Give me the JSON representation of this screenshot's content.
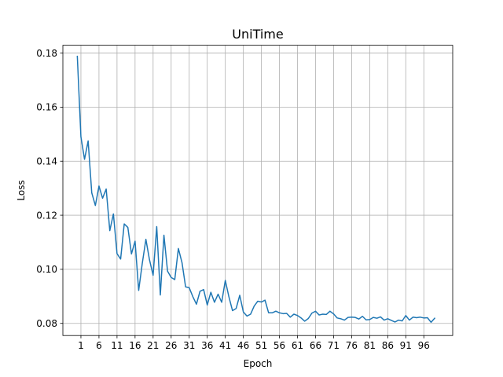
{
  "chart_data": {
    "type": "line",
    "title": "UniTime",
    "xlabel": "Epoch",
    "ylabel": "Loss",
    "xlim": [
      -4.0,
      104.0
    ],
    "ylim": [
      0.0755,
      0.1829
    ],
    "xticks": [
      1,
      6,
      11,
      16,
      21,
      26,
      31,
      36,
      41,
      46,
      51,
      56,
      61,
      66,
      71,
      76,
      81,
      86,
      91,
      96
    ],
    "xtick_labels": [
      "1",
      "6",
      "11",
      "16",
      "21",
      "26",
      "31",
      "36",
      "41",
      "46",
      "51",
      "56",
      "61",
      "66",
      "71",
      "76",
      "81",
      "86",
      "91",
      "96"
    ],
    "yticks": [
      0.08,
      0.1,
      0.12,
      0.14,
      0.16,
      0.18
    ],
    "ytick_labels": [
      "0.08",
      "0.10",
      "0.12",
      "0.14",
      "0.16",
      "0.18"
    ],
    "grid": true,
    "series": [
      {
        "color": "#1f77b4",
        "x": [
          0,
          1,
          2,
          3,
          4,
          5,
          6,
          7,
          8,
          9,
          10,
          11,
          12,
          13,
          14,
          15,
          16,
          17,
          18,
          19,
          20,
          21,
          22,
          23,
          24,
          25,
          26,
          27,
          28,
          29,
          30,
          31,
          32,
          33,
          34,
          35,
          36,
          37,
          38,
          39,
          40,
          41,
          42,
          43,
          44,
          45,
          46,
          47,
          48,
          49,
          50,
          51,
          52,
          53,
          54,
          55,
          56,
          57,
          58,
          59,
          60,
          61,
          62,
          63,
          64,
          65,
          66,
          67,
          68,
          69,
          70,
          71,
          72,
          73,
          74,
          75,
          76,
          77,
          78,
          79,
          80,
          81,
          82,
          83,
          84,
          85,
          86,
          87,
          88,
          89,
          90,
          91,
          92,
          93,
          94,
          95,
          96,
          97,
          98,
          99
        ],
        "y": [
          0.1788,
          0.149,
          0.1407,
          0.1475,
          0.1283,
          0.1236,
          0.1308,
          0.1263,
          0.1297,
          0.1143,
          0.1205,
          0.1058,
          0.1038,
          0.1168,
          0.1155,
          0.1057,
          0.1104,
          0.0922,
          0.1022,
          0.1111,
          0.1035,
          0.0978,
          0.1158,
          0.0905,
          0.1126,
          0.0993,
          0.097,
          0.0962,
          0.1077,
          0.1025,
          0.0935,
          0.0932,
          0.0899,
          0.0871,
          0.0919,
          0.0925,
          0.0868,
          0.0915,
          0.0878,
          0.0908,
          0.0878,
          0.0959,
          0.0898,
          0.0847,
          0.0855,
          0.0904,
          0.0842,
          0.0827,
          0.0834,
          0.0864,
          0.0882,
          0.0879,
          0.0886,
          0.0839,
          0.0839,
          0.0845,
          0.0839,
          0.0836,
          0.0837,
          0.0823,
          0.0834,
          0.0829,
          0.082,
          0.0808,
          0.0818,
          0.0838,
          0.0845,
          0.0831,
          0.0834,
          0.0833,
          0.0845,
          0.0835,
          0.082,
          0.0817,
          0.0812,
          0.0822,
          0.0823,
          0.0822,
          0.0816,
          0.0826,
          0.0813,
          0.0814,
          0.0822,
          0.0819,
          0.0824,
          0.0812,
          0.0817,
          0.0811,
          0.0805,
          0.0812,
          0.0809,
          0.0829,
          0.0812,
          0.0823,
          0.0821,
          0.0823,
          0.082,
          0.0821,
          0.0804,
          0.0819
        ]
      }
    ]
  }
}
